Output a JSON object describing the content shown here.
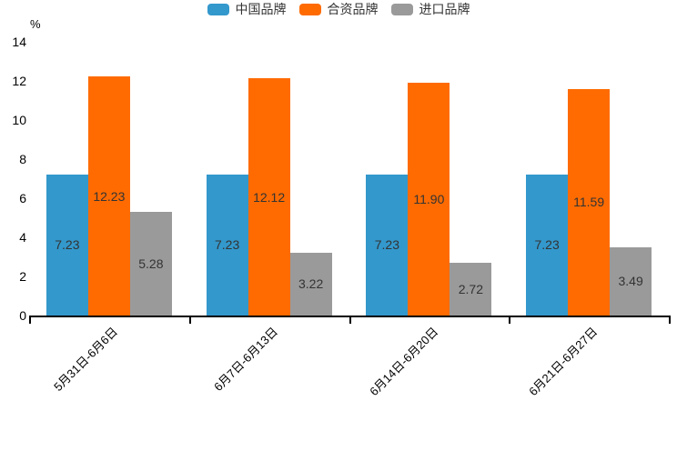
{
  "chart_data": {
    "type": "bar",
    "unit": "%",
    "categories": [
      "5月31日-6月6日",
      "6月7日-6月13日",
      "6月14日-6月20日",
      "6月21日-6月27日"
    ],
    "series": [
      {
        "name": "中国品牌",
        "color": "#3398CC",
        "values": [
          7.23,
          7.23,
          7.23,
          7.23
        ],
        "labels": [
          "7.23",
          "7.23",
          "7.23",
          "7.23"
        ]
      },
      {
        "name": "合资品牌",
        "color": "#FF6B00",
        "values": [
          12.23,
          12.12,
          11.9,
          11.59
        ],
        "labels": [
          "12.23",
          "12.12",
          "11.90",
          "11.59"
        ]
      },
      {
        "name": "进口品牌",
        "color": "#9A9A9A",
        "values": [
          5.28,
          3.22,
          2.72,
          3.49
        ],
        "labels": [
          "5.28",
          "3.22",
          "2.72",
          "3.49"
        ]
      }
    ],
    "ylim": [
      0,
      14
    ],
    "yticks": [
      0,
      2,
      4,
      6,
      8,
      10,
      12,
      14
    ],
    "legend_position": "top",
    "grid": false,
    "value_label_color": "#333333",
    "axis_color": "#000000"
  }
}
